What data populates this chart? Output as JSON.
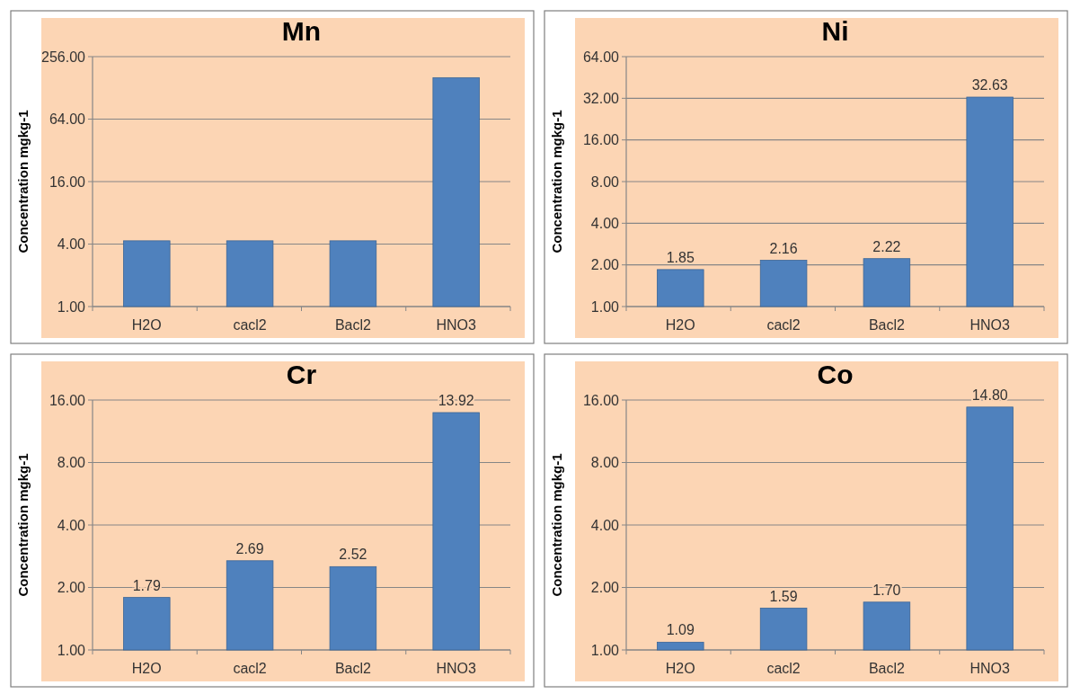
{
  "chart_data": [
    {
      "type": "bar",
      "title": "Mn",
      "ylabel": "Concentration mgkg-1",
      "categories": [
        "H2O",
        "cacl2",
        "Bacl2",
        "HNO3"
      ],
      "series": [
        {
          "color": "#4f81bd",
          "values": [
            4.3,
            4.3,
            4.3,
            160
          ]
        }
      ],
      "log": true,
      "ylim": [
        1,
        256
      ],
      "yticks": [
        {
          "value": 1,
          "label": "1.00"
        },
        {
          "value": 4,
          "label": "4.00"
        },
        {
          "value": 16,
          "label": "16.00"
        },
        {
          "value": 64,
          "label": "64.00"
        },
        {
          "value": 256,
          "label": "256.00"
        }
      ],
      "grid": "y"
    },
    {
      "type": "bar",
      "title": "Ni",
      "ylabel": "Concentration mgkg-1",
      "categories": [
        "H2O",
        "cacl2",
        "Bacl2",
        "HNO3"
      ],
      "series": [
        {
          "color": "#4f81bd",
          "values": [
            1.85,
            2.16,
            2.22,
            32.63
          ],
          "value_labels": [
            "1.85",
            "2.16",
            "2.22",
            "32.63"
          ]
        }
      ],
      "log": true,
      "ylim": [
        1,
        64
      ],
      "yticks": [
        {
          "value": 1,
          "label": "1.00"
        },
        {
          "value": 2,
          "label": "2.00"
        },
        {
          "value": 4,
          "label": "4.00"
        },
        {
          "value": 8,
          "label": "8.00"
        },
        {
          "value": 16,
          "label": "16.00"
        },
        {
          "value": 32,
          "label": "32.00"
        },
        {
          "value": 64,
          "label": "64.00"
        }
      ],
      "grid": "y"
    },
    {
      "type": "bar",
      "title": "Cr",
      "ylabel": "Concentration mgkg-1",
      "categories": [
        "H2O",
        "cacl2",
        "Bacl2",
        "HNO3"
      ],
      "series": [
        {
          "color": "#4f81bd",
          "values": [
            1.79,
            2.69,
            2.52,
            13.92
          ],
          "value_labels": [
            "1.79",
            "2.69",
            "2.52",
            "13.92"
          ]
        }
      ],
      "log": true,
      "ylim": [
        1,
        16
      ],
      "yticks": [
        {
          "value": 1,
          "label": "1.00"
        },
        {
          "value": 2,
          "label": "2.00"
        },
        {
          "value": 4,
          "label": "4.00"
        },
        {
          "value": 8,
          "label": "8.00"
        },
        {
          "value": 16,
          "label": "16.00"
        }
      ],
      "grid": "y"
    },
    {
      "type": "bar",
      "title": "Co",
      "ylabel": "Concentration mgkg-1",
      "categories": [
        "H2O",
        "cacl2",
        "Bacl2",
        "HNO3"
      ],
      "series": [
        {
          "color": "#4f81bd",
          "values": [
            1.09,
            1.59,
            1.7,
            14.8
          ],
          "value_labels": [
            "1.09",
            "1.59",
            "1.70",
            "14.80"
          ]
        }
      ],
      "log": true,
      "ylim": [
        1,
        16
      ],
      "yticks": [
        {
          "value": 1,
          "label": "1.00"
        },
        {
          "value": 2,
          "label": "2.00"
        },
        {
          "value": 4,
          "label": "4.00"
        },
        {
          "value": 8,
          "label": "8.00"
        },
        {
          "value": 16,
          "label": "16.00"
        }
      ],
      "grid": "y"
    }
  ]
}
